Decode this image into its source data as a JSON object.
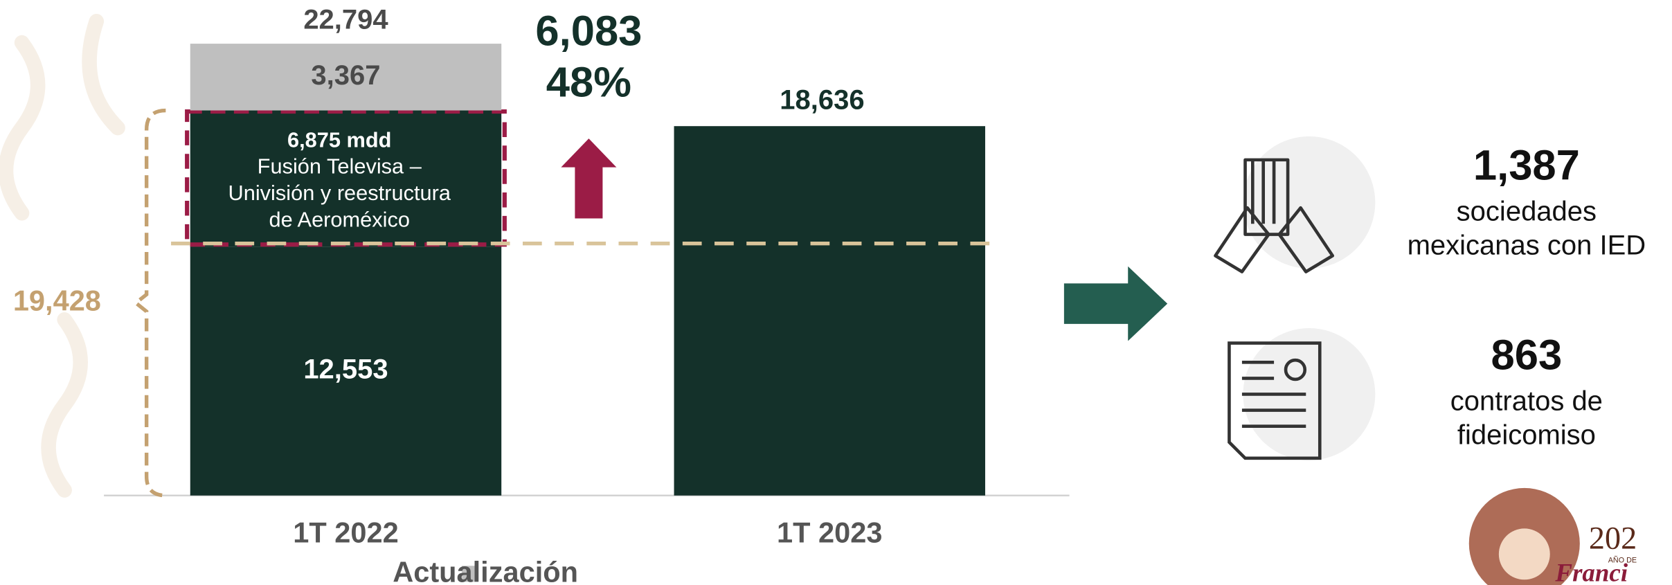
{
  "chart_data": {
    "type": "bar",
    "stacked": true,
    "categories": [
      "1T 2022",
      "1T 2023"
    ],
    "series": [
      {
        "color": "#14312a",
        "values": [
          12553,
          18636
        ],
        "value_labels": [
          "12,553",
          "18,636"
        ]
      },
      {
        "color": "#14312a",
        "values": [
          6875,
          null
        ],
        "value_labels": [
          "6,875 mdd",
          null
        ],
        "note_lines": [
          "Fusión Televisa –",
          "Univisión y reestructura",
          "de Aeroméxico"
        ]
      },
      {
        "name": "Actualización",
        "color": "#bfbfbf",
        "values": [
          3367,
          null
        ],
        "value_labels": [
          "3,367",
          null
        ]
      }
    ],
    "ylim": [
      0,
      25000
    ],
    "annotations": {
      "total": {
        "value": 22794,
        "label": "22,794"
      },
      "bracket": {
        "value": 19428,
        "label": "19,428"
      },
      "change": {
        "value": 6083,
        "label": "6,083"
      },
      "change_pct": {
        "value": 48,
        "label": "48%"
      }
    }
  },
  "side_panel": {
    "stats": [
      {
        "value": 1387,
        "label": "1,387",
        "caption": [
          "sociedades",
          "mexicanas con IED"
        ]
      },
      {
        "value": 863,
        "label": "863",
        "caption": [
          "contratos de",
          "fideicomiso"
        ]
      }
    ]
  },
  "logo": {
    "lines": [
      "202",
      "AÑO DE",
      "Franci"
    ]
  }
}
